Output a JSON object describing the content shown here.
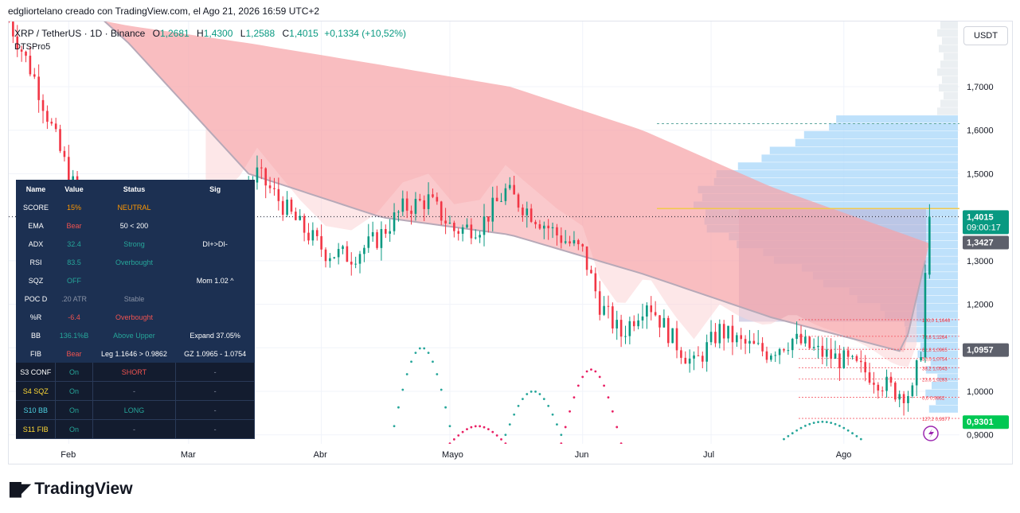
{
  "caption": "edgliortelano creado con TradingView.com, el Ago 21, 2026 16:59 UTC+2",
  "legend": {
    "symbol": "XRP / TetherUS · 1D · Binance",
    "open_label": "O",
    "open": "1,2681",
    "high_label": "H",
    "high": "1,4300",
    "low_label": "L",
    "low": "1,2588",
    "close_label": "C",
    "close": "1,4015",
    "change": "+0,1334 (+10,52%)"
  },
  "indicator_name": "DTSPro5",
  "currency": "USDT",
  "brand": "TradingView",
  "colors": {
    "up": "#089981",
    "down": "#f23645",
    "cloud": "#f7a1a5",
    "ma": "#b7a9b8",
    "volume_profile": "#b3dcfa",
    "value_area": "#b8b0d6",
    "poc": "#f2c94c"
  },
  "chart_data": {
    "type": "candlestick",
    "title": "XRP / TetherUS · 1D · Binance",
    "y_scale": "linear",
    "ylim": [
      0.87,
      1.85
    ],
    "y_ticks": [
      0.9,
      1.0,
      1.1,
      1.2,
      1.3,
      1.4,
      1.5,
      1.6,
      1.7
    ],
    "y_tick_labels": [
      "0,9000",
      "1,0000",
      "1,1000",
      "1,2000",
      "1,3000",
      "1,4000",
      "1,5000",
      "1,6000",
      "1,7000"
    ],
    "x_month_labels": [
      {
        "date": "2026-02-01",
        "label": "Feb"
      },
      {
        "date": "2026-03-01",
        "label": "Mar"
      },
      {
        "date": "2026-04-01",
        "label": "Abr"
      },
      {
        "date": "2026-05-01",
        "label": "Mayo"
      },
      {
        "date": "2026-06-01",
        "label": "Jun"
      },
      {
        "date": "2026-07-01",
        "label": "Jul"
      },
      {
        "date": "2026-08-01",
        "label": "Ago"
      }
    ],
    "x_start": "2026-01-18",
    "x_end": "2026-08-28",
    "price_path": [
      {
        "date": "2026-01-18",
        "price": 1.85
      },
      {
        "date": "2026-01-24",
        "price": 1.72
      },
      {
        "date": "2026-01-30",
        "price": 1.55
      },
      {
        "date": "2026-02-05",
        "price": 1.4
      },
      {
        "date": "2026-02-10",
        "price": 1.45
      },
      {
        "date": "2026-02-16",
        "price": 1.4
      },
      {
        "date": "2026-02-22",
        "price": 1.42
      },
      {
        "date": "2026-02-28",
        "price": 1.37
      },
      {
        "date": "2026-03-06",
        "price": 1.39
      },
      {
        "date": "2026-03-12",
        "price": 1.42
      },
      {
        "date": "2026-03-17",
        "price": 1.5
      },
      {
        "date": "2026-03-22",
        "price": 1.44
      },
      {
        "date": "2026-03-27",
        "price": 1.38
      },
      {
        "date": "2026-04-02",
        "price": 1.32
      },
      {
        "date": "2026-04-08",
        "price": 1.31
      },
      {
        "date": "2026-04-14",
        "price": 1.35
      },
      {
        "date": "2026-04-20",
        "price": 1.42
      },
      {
        "date": "2026-04-26",
        "price": 1.44
      },
      {
        "date": "2026-05-02",
        "price": 1.37
      },
      {
        "date": "2026-05-08",
        "price": 1.38
      },
      {
        "date": "2026-05-14",
        "price": 1.46
      },
      {
        "date": "2026-05-20",
        "price": 1.41
      },
      {
        "date": "2026-05-26",
        "price": 1.36
      },
      {
        "date": "2026-06-01",
        "price": 1.32
      },
      {
        "date": "2026-06-05",
        "price": 1.2
      },
      {
        "date": "2026-06-10",
        "price": 1.13
      },
      {
        "date": "2026-06-16",
        "price": 1.21
      },
      {
        "date": "2026-06-22",
        "price": 1.12
      },
      {
        "date": "2026-06-27",
        "price": 1.06
      },
      {
        "date": "2026-07-03",
        "price": 1.14
      },
      {
        "date": "2026-07-08",
        "price": 1.11
      },
      {
        "date": "2026-07-14",
        "price": 1.09
      },
      {
        "date": "2026-07-20",
        "price": 1.12
      },
      {
        "date": "2026-07-26",
        "price": 1.09
      },
      {
        "date": "2026-08-01",
        "price": 1.07
      },
      {
        "date": "2026-08-07",
        "price": 1.04
      },
      {
        "date": "2026-08-13",
        "price": 1.0
      },
      {
        "date": "2026-08-17",
        "price": 0.995
      },
      {
        "date": "2026-08-19",
        "price": 1.1
      },
      {
        "date": "2026-08-20",
        "price": 1.2681
      },
      {
        "date": "2026-08-21",
        "price": 1.4015
      }
    ],
    "moving_average": [
      {
        "date": "2026-01-18",
        "price": 2.05
      },
      {
        "date": "2026-02-15",
        "price": 1.8
      },
      {
        "date": "2026-03-15",
        "price": 1.5
      },
      {
        "date": "2026-04-15",
        "price": 1.4
      },
      {
        "date": "2026-05-15",
        "price": 1.36
      },
      {
        "date": "2026-06-15",
        "price": 1.27
      },
      {
        "date": "2026-07-15",
        "price": 1.17
      },
      {
        "date": "2026-08-15",
        "price": 1.09
      },
      {
        "date": "2026-08-21",
        "price": 1.3427
      }
    ],
    "cloud_upper": [
      {
        "date": "2026-01-25",
        "price": 1.88
      },
      {
        "date": "2026-02-15",
        "price": 1.84
      },
      {
        "date": "2026-03-15",
        "price": 1.8
      },
      {
        "date": "2026-04-15",
        "price": 1.75
      },
      {
        "date": "2026-05-15",
        "price": 1.7
      },
      {
        "date": "2026-06-15",
        "price": 1.6
      },
      {
        "date": "2026-07-15",
        "price": 1.47
      },
      {
        "date": "2026-08-21",
        "price": 1.34
      }
    ],
    "price_labels": [
      {
        "value": 1.4015,
        "text": "1,4015",
        "sub": "09:00:17",
        "color": "#089981"
      },
      {
        "value": 1.3427,
        "text": "1,3427",
        "color": "#5d606b"
      },
      {
        "value": 1.0957,
        "text": "1,0957",
        "color": "#5d606b"
      },
      {
        "value": 0.9301,
        "text": "0,9301",
        "color": "#00c853"
      }
    ],
    "fib_levels": [
      {
        "value": 1.1646,
        "text": "100,0  1,1646"
      },
      {
        "value": 1.1264,
        "text": "78,6  1,1264"
      },
      {
        "value": 1.0965,
        "text": "61,8  1,0965"
      },
      {
        "value": 1.0754,
        "text": "50,0  1,0754"
      },
      {
        "value": 1.0543,
        "text": "38,2  1,0543"
      },
      {
        "value": 1.0283,
        "text": "23,6  1,0283"
      },
      {
        "value": 0.9862,
        "text": "0,0  0,9862"
      },
      {
        "value": 0.9377,
        "text": "127,2  0,9377"
      }
    ],
    "resistance_line": 1.615,
    "poc_line": 1.42
  },
  "panel": {
    "headers": [
      "Name",
      "Value",
      "Status",
      "Sig"
    ],
    "rows": [
      {
        "name": "SCORE",
        "value": "15%",
        "status": "NEUTRAL",
        "sig": "",
        "vc": "c-orange",
        "sc": "c-orange"
      },
      {
        "name": "EMA",
        "value": "Bear",
        "status": "50 < 200",
        "sig": "",
        "vc": "c-red",
        "sc": "c-white"
      },
      {
        "name": "ADX",
        "value": "32.4",
        "status": "Strong",
        "sig": "DI+>DI-",
        "vc": "c-green",
        "sc": "c-green"
      },
      {
        "name": "RSI",
        "value": "83.5",
        "status": "Overbought",
        "sig": "",
        "vc": "c-green",
        "sc": "c-green"
      },
      {
        "name": "SQZ",
        "value": "OFF",
        "status": "",
        "sig": "Mom 1.02 ^",
        "vc": "c-green",
        "sc": "c-white"
      },
      {
        "name": "POC D",
        "value": ".20 ATR",
        "status": "Stable",
        "sig": "",
        "vc": "c-gray",
        "sc": "c-gray"
      },
      {
        "name": "%R",
        "value": "-6.4",
        "status": "Overbought",
        "sig": "",
        "vc": "c-red",
        "sc": "c-red"
      },
      {
        "name": "BB",
        "value": "136.1%B",
        "status": "Above Upper",
        "sig": "Expand 37.05%",
        "vc": "c-green",
        "sc": "c-green"
      },
      {
        "name": "FIB",
        "value": "Bear",
        "status": "Leg 1.1646 > 0.9862",
        "sig": "GZ 1.0965 - 1.0754",
        "vc": "c-red",
        "sc": "c-white"
      }
    ],
    "signals": [
      {
        "name": "S3 CONF",
        "value": "On",
        "status": "SHORT",
        "sig": "-",
        "nc": "c-white",
        "stc": "c-red"
      },
      {
        "name": "S4 SQZ",
        "value": "On",
        "status": "-",
        "sig": "-",
        "nc": "c-yellow",
        "stc": "c-gray"
      },
      {
        "name": "S10 BB",
        "value": "On",
        "status": "LONG",
        "sig": "-",
        "nc": "c-cyan",
        "stc": "c-green"
      },
      {
        "name": "S11 FIB",
        "value": "On",
        "status": "-",
        "sig": "-",
        "nc": "c-yellow",
        "stc": "c-gray"
      }
    ]
  }
}
